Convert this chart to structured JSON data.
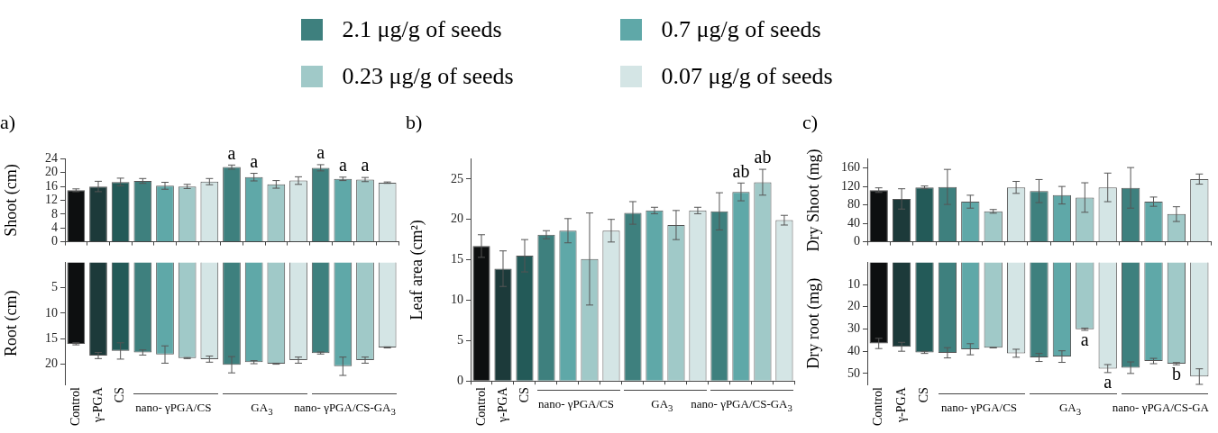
{
  "chart_data": [
    {
      "type": "bar",
      "title": "a)",
      "ylabel": "Shoot (cm)",
      "categories": [
        null,
        null,
        null,
        null,
        null,
        null,
        null,
        null,
        null,
        null,
        null,
        null,
        null,
        null,
        null
      ],
      "ylim": [
        0,
        24
      ],
      "yticks": [
        0,
        4,
        8,
        12,
        16,
        20,
        24
      ],
      "legend": "top",
      "series": [
        {
          "colors": [
            "#0d0f10",
            "#1c3a3a",
            "#235a58",
            null,
            null,
            null,
            null,
            null,
            null,
            null,
            null,
            null,
            null,
            null,
            null
          ],
          "values": [
            14.9,
            16.0,
            17.3,
            null,
            null,
            null,
            null,
            null,
            null,
            null,
            null,
            null,
            null,
            null,
            null
          ],
          "errors": [
            0.4,
            1.5,
            1.1,
            null,
            null,
            null,
            null,
            null,
            null,
            null,
            null,
            null,
            null,
            null,
            null
          ]
        },
        {
          "name": "2.1 μg/g of seeds",
          "color": "#3e807e",
          "values": [
            null,
            null,
            null,
            17.6,
            null,
            null,
            null,
            21.6,
            null,
            null,
            null,
            21.4,
            null,
            null,
            null
          ],
          "errors": [
            null,
            null,
            null,
            0.7,
            null,
            null,
            null,
            0.6,
            null,
            null,
            null,
            0.9,
            null,
            null,
            null
          ],
          "value_labels": [
            null,
            null,
            null,
            null,
            null,
            null,
            null,
            "a",
            null,
            null,
            null,
            "a",
            null,
            null,
            null
          ]
        },
        {
          "name": "0.7 μg/g of seeds",
          "color": "#5fa8a8",
          "values": [
            null,
            null,
            null,
            null,
            16.2,
            null,
            null,
            null,
            18.7,
            null,
            null,
            null,
            18.2,
            null,
            null
          ],
          "errors": [
            null,
            null,
            null,
            null,
            1.0,
            null,
            null,
            null,
            1.1,
            null,
            null,
            null,
            0.5,
            null,
            null
          ],
          "value_labels": [
            null,
            null,
            null,
            null,
            null,
            null,
            null,
            null,
            "a",
            null,
            null,
            null,
            "a",
            null,
            null
          ]
        },
        {
          "name": "0.23 μg/g of seeds",
          "color": "#a0c9c8",
          "values": [
            null,
            null,
            null,
            null,
            null,
            16.0,
            null,
            null,
            null,
            16.6,
            null,
            null,
            null,
            18.0,
            null
          ],
          "errors": [
            null,
            null,
            null,
            null,
            null,
            0.6,
            null,
            null,
            null,
            1.1,
            null,
            null,
            null,
            0.6,
            null
          ],
          "value_labels": [
            null,
            null,
            null,
            null,
            null,
            null,
            null,
            null,
            null,
            null,
            null,
            null,
            null,
            "a",
            null
          ]
        },
        {
          "name": "0.07 μg/g of seeds",
          "color": "#d4e5e5",
          "values": [
            null,
            null,
            null,
            null,
            null,
            null,
            17.4,
            null,
            null,
            null,
            17.7,
            null,
            null,
            null,
            17.1
          ],
          "errors": [
            null,
            null,
            null,
            null,
            null,
            null,
            0.9,
            null,
            null,
            null,
            1.1,
            null,
            null,
            null,
            0.2
          ]
        }
      ]
    },
    {
      "type": "bar",
      "ylabel": "Root (cm)",
      "categories": [
        "Control",
        "γ-PGA",
        "CS",
        null,
        null,
        null,
        null,
        null,
        null,
        null,
        null,
        null,
        null,
        null,
        null
      ],
      "ylim": [
        24,
        0
      ],
      "yticks": [
        5,
        10,
        15,
        20
      ],
      "annotations": [
        "nano- γPGA/CS",
        "GA$_{3}$",
        "nano- γPGA/CS-GA$_{3}$"
      ],
      "series": [
        {
          "colors": [
            "#0d0f10",
            "#1c3a3a",
            "#235a58",
            null,
            null,
            null,
            null,
            null,
            null,
            null,
            null,
            null,
            null,
            null,
            null
          ],
          "values": [
            16.0,
            18.3,
            17.4,
            null,
            null,
            null,
            null,
            null,
            null,
            null,
            null,
            null,
            null,
            null,
            null
          ],
          "errors": [
            0.2,
            0.6,
            1.6,
            null,
            null,
            null,
            null,
            null,
            null,
            null,
            null,
            null,
            null,
            null,
            null
          ]
        },
        {
          "color": "#3e807e",
          "values": [
            null,
            null,
            null,
            17.7,
            null,
            null,
            null,
            20.1,
            null,
            null,
            null,
            17.8,
            null,
            null,
            null
          ],
          "errors": [
            null,
            null,
            null,
            0.5,
            null,
            null,
            null,
            1.6,
            null,
            null,
            null,
            0.2,
            null,
            null,
            null
          ]
        },
        {
          "color": "#5fa8a8",
          "values": [
            null,
            null,
            null,
            null,
            18.1,
            null,
            null,
            null,
            19.6,
            null,
            null,
            null,
            20.4,
            null,
            null
          ],
          "errors": [
            null,
            null,
            null,
            null,
            1.7,
            null,
            null,
            null,
            0.3,
            null,
            null,
            null,
            1.8,
            null,
            null
          ]
        },
        {
          "color": "#a0c9c8",
          "values": [
            null,
            null,
            null,
            null,
            null,
            18.8,
            null,
            null,
            null,
            19.9,
            null,
            null,
            null,
            19.2,
            null
          ],
          "errors": [
            null,
            null,
            null,
            null,
            null,
            0.1,
            null,
            null,
            null,
            0.1,
            null,
            null,
            null,
            0.6,
            null
          ]
        },
        {
          "color": "#d4e5e5",
          "values": [
            null,
            null,
            null,
            null,
            null,
            null,
            19.0,
            null,
            null,
            null,
            19.2,
            null,
            null,
            null,
            16.7
          ],
          "errors": [
            null,
            null,
            null,
            null,
            null,
            null,
            0.6,
            null,
            null,
            null,
            0.6,
            null,
            null,
            null,
            0.1
          ]
        }
      ]
    },
    {
      "type": "bar",
      "title": "b)",
      "ylabel": "Leaf area (cm²)",
      "categories": [
        "Control",
        "γ-PGA",
        "CS",
        null,
        null,
        null,
        null,
        null,
        null,
        null,
        null,
        null,
        null,
        null,
        null
      ],
      "ylim": [
        0,
        27.5
      ],
      "yticks": [
        0,
        5,
        10,
        15,
        20,
        25
      ],
      "annotations": [
        "nano- γPGA/CS",
        "GA$_{3}$",
        "nano- γPGA/CS-GA$_{3}$"
      ],
      "series": [
        {
          "colors": [
            "#0d0f10",
            "#1c3a3a",
            "#235a58",
            null,
            null,
            null,
            null,
            null,
            null,
            null,
            null,
            null,
            null,
            null,
            null
          ],
          "values": [
            16.7,
            13.9,
            15.5,
            null,
            null,
            null,
            null,
            null,
            null,
            null,
            null,
            null,
            null,
            null,
            null
          ],
          "errors": [
            1.4,
            2.2,
            2.0,
            null,
            null,
            null,
            null,
            null,
            null,
            null,
            null,
            null,
            null,
            null,
            null
          ]
        },
        {
          "color": "#3e807e",
          "values": [
            null,
            null,
            null,
            18.1,
            null,
            null,
            null,
            20.8,
            null,
            null,
            null,
            21.0,
            null,
            null,
            null
          ],
          "errors": [
            null,
            null,
            null,
            0.5,
            null,
            null,
            null,
            1.4,
            null,
            null,
            null,
            2.3,
            null,
            null,
            null
          ]
        },
        {
          "color": "#5fa8a8",
          "values": [
            null,
            null,
            null,
            null,
            18.6,
            null,
            null,
            null,
            21.1,
            null,
            null,
            null,
            23.4,
            null,
            null
          ],
          "errors": [
            null,
            null,
            null,
            null,
            1.5,
            null,
            null,
            null,
            0.4,
            null,
            null,
            null,
            1.1,
            null,
            null
          ],
          "value_labels": [
            null,
            null,
            null,
            null,
            null,
            null,
            null,
            null,
            null,
            null,
            null,
            null,
            "ab",
            null,
            null
          ]
        },
        {
          "color": "#a0c9c8",
          "values": [
            null,
            null,
            null,
            null,
            null,
            15.1,
            null,
            null,
            null,
            19.3,
            null,
            null,
            null,
            24.6,
            null
          ],
          "errors": [
            null,
            null,
            null,
            null,
            null,
            5.7,
            null,
            null,
            null,
            1.8,
            null,
            null,
            null,
            1.6,
            null
          ],
          "value_labels": [
            null,
            null,
            null,
            null,
            null,
            null,
            null,
            null,
            null,
            null,
            null,
            null,
            null,
            "ab",
            null
          ]
        },
        {
          "color": "#d4e5e5",
          "values": [
            null,
            null,
            null,
            null,
            null,
            null,
            18.6,
            null,
            null,
            null,
            21.1,
            null,
            null,
            null,
            19.9
          ],
          "errors": [
            null,
            null,
            null,
            null,
            null,
            null,
            1.4,
            null,
            null,
            null,
            0.4,
            null,
            null,
            null,
            0.6
          ]
        }
      ]
    },
    {
      "type": "bar",
      "title": "c)",
      "ylabel": "Dry Shoot (mg)",
      "categories": [
        null,
        null,
        null,
        null,
        null,
        null,
        null,
        null,
        null,
        null,
        null,
        null,
        null,
        null,
        null
      ],
      "ylim": [
        0,
        180
      ],
      "yticks": [
        0,
        40,
        80,
        120,
        160
      ],
      "series": [
        {
          "colors": [
            "#0d0f10",
            "#1c3a3a",
            "#235a58",
            null,
            null,
            null,
            null,
            null,
            null,
            null,
            null,
            null,
            null,
            null,
            null
          ],
          "values": [
            112,
            93,
            118,
            null,
            null,
            null,
            null,
            null,
            null,
            null,
            null,
            null,
            null,
            null,
            null
          ],
          "errors": [
            5,
            22,
            3,
            null,
            null,
            null,
            null,
            null,
            null,
            null,
            null,
            null,
            null,
            null,
            null
          ]
        },
        {
          "color": "#3e807e",
          "values": [
            null,
            null,
            null,
            119,
            null,
            null,
            null,
            110,
            null,
            null,
            null,
            117,
            null,
            null,
            null
          ],
          "errors": [
            null,
            null,
            null,
            38,
            null,
            null,
            null,
            25,
            null,
            null,
            null,
            44,
            null,
            null,
            null
          ]
        },
        {
          "color": "#5fa8a8",
          "values": [
            null,
            null,
            null,
            null,
            87,
            null,
            null,
            null,
            101,
            null,
            null,
            null,
            87,
            null,
            null
          ],
          "errors": [
            null,
            null,
            null,
            null,
            14,
            null,
            null,
            null,
            19,
            null,
            null,
            null,
            10,
            null,
            null
          ]
        },
        {
          "color": "#a0c9c8",
          "values": [
            null,
            null,
            null,
            null,
            null,
            66,
            null,
            null,
            null,
            96,
            null,
            null,
            null,
            60,
            null
          ],
          "errors": [
            null,
            null,
            null,
            null,
            null,
            4,
            null,
            null,
            null,
            32,
            null,
            null,
            null,
            16,
            null
          ]
        },
        {
          "color": "#d4e5e5",
          "values": [
            null,
            null,
            null,
            null,
            null,
            null,
            118,
            null,
            null,
            null,
            118,
            null,
            null,
            null,
            136
          ],
          "errors": [
            null,
            null,
            null,
            null,
            null,
            null,
            13,
            null,
            null,
            null,
            31,
            null,
            null,
            null,
            11
          ]
        }
      ]
    },
    {
      "type": "bar",
      "ylabel": "Dry root (mg)",
      "categories": [
        "Control",
        "γ-PGA",
        "CS",
        null,
        null,
        null,
        null,
        null,
        null,
        null,
        null,
        null,
        null,
        null,
        null
      ],
      "ylim": [
        55,
        0
      ],
      "yticks": [
        10,
        20,
        30,
        40,
        50
      ],
      "annotations": [
        "nano- γPGA/CS",
        "GA$_{3}$",
        "nano- γPGA/CS-GA"
      ],
      "series": [
        {
          "colors": [
            "#0d0f10",
            "#1c3a3a",
            "#235a58",
            null,
            null,
            null,
            null,
            null,
            null,
            null,
            null,
            null,
            null,
            null,
            null
          ],
          "values": [
            36.5,
            38.0,
            40.5,
            null,
            null,
            null,
            null,
            null,
            null,
            null,
            null,
            null,
            null,
            null,
            null
          ],
          "errors": [
            2.3,
            2.0,
            0.5,
            null,
            null,
            null,
            null,
            null,
            null,
            null,
            null,
            null,
            null,
            null,
            null
          ]
        },
        {
          "color": "#3e807e",
          "values": [
            null,
            null,
            null,
            40.7,
            null,
            null,
            null,
            42.8,
            null,
            null,
            null,
            47.4,
            null,
            null,
            null
          ],
          "errors": [
            null,
            null,
            null,
            2.3,
            null,
            null,
            null,
            1.8,
            null,
            null,
            null,
            2.6,
            null,
            null,
            null
          ]
        },
        {
          "color": "#5fa8a8",
          "values": [
            null,
            null,
            null,
            null,
            39.1,
            null,
            null,
            null,
            42.4,
            null,
            null,
            null,
            44.4,
            null,
            null
          ],
          "errors": [
            null,
            null,
            null,
            null,
            2.5,
            null,
            null,
            null,
            2.6,
            null,
            null,
            null,
            1.2,
            null,
            null
          ]
        },
        {
          "color": "#a0c9c8",
          "values": [
            null,
            null,
            null,
            null,
            null,
            38.4,
            null,
            null,
            null,
            30.1,
            null,
            null,
            null,
            45.6,
            null
          ],
          "errors": [
            null,
            null,
            null,
            null,
            null,
            0.1,
            null,
            null,
            null,
            0.5,
            null,
            null,
            null,
            0.5,
            null
          ],
          "value_labels": [
            null,
            null,
            null,
            null,
            null,
            null,
            null,
            null,
            null,
            "a",
            null,
            null,
            null,
            "b",
            null
          ]
        },
        {
          "color": "#d4e5e5",
          "values": [
            null,
            null,
            null,
            null,
            null,
            null,
            40.9,
            null,
            null,
            null,
            47.8,
            null,
            null,
            null,
            51.4
          ],
          "errors": [
            null,
            null,
            null,
            null,
            null,
            null,
            1.8,
            null,
            null,
            null,
            1.8,
            null,
            null,
            null,
            3.5
          ],
          "value_labels": [
            null,
            null,
            null,
            null,
            null,
            null,
            null,
            null,
            null,
            null,
            "a",
            null,
            null,
            null,
            null
          ]
        }
      ]
    }
  ]
}
